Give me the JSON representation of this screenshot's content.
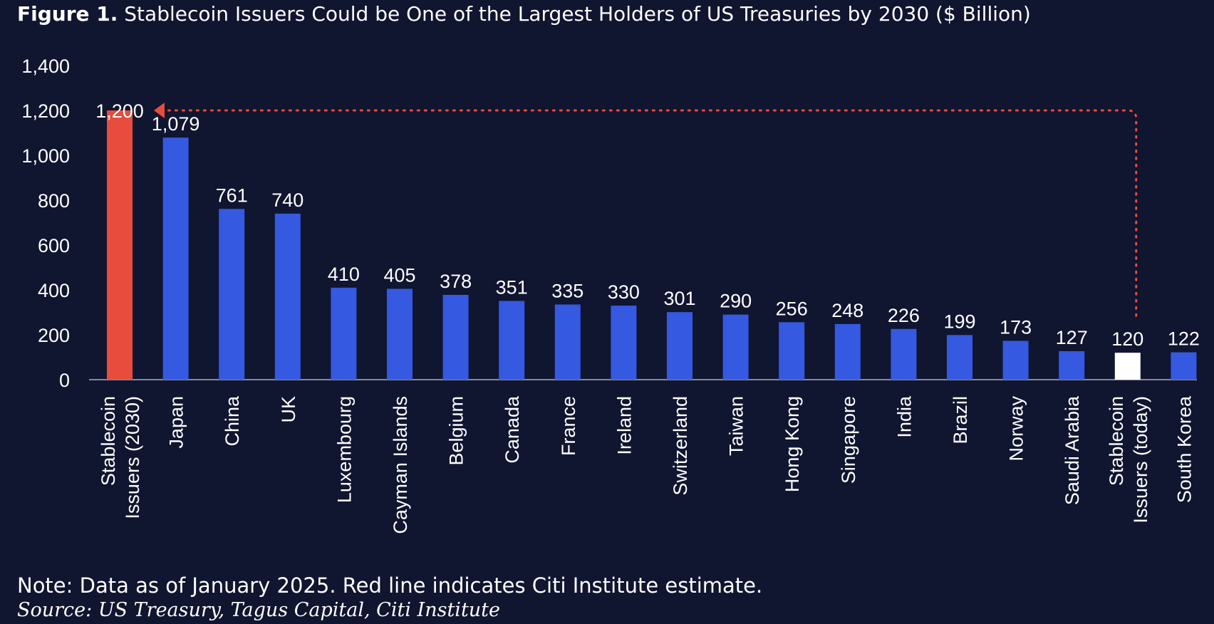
{
  "title_prefix": "Figure 1.",
  "title_text": "Stablecoin Issuers Could be One of the Largest Holders of US Treasuries by 2030 ($ Billion)",
  "note": "Note: Data as of January 2025. Red line indicates Citi Institute estimate.",
  "source": "Source: US Treasury, Tagus Capital, Citi Institute",
  "colors": {
    "background": "#101530",
    "bar_default": "#3559e0",
    "bar_highlight": "#e84c3d",
    "bar_today": "#ffffff",
    "text": "#ffffff",
    "arrow": "#e84c3d"
  },
  "chart_data": {
    "type": "bar",
    "title": "Stablecoin Issuers Could be One of the Largest Holders of US Treasuries by 2030 ($ Billion)",
    "xlabel": "",
    "ylabel": "",
    "ylim": [
      0,
      1400
    ],
    "yticks": [
      0,
      200,
      400,
      600,
      800,
      1000,
      1200,
      1400
    ],
    "ytick_labels": [
      "0",
      "200",
      "400",
      "600",
      "800",
      "1,000",
      "1,200",
      "1,400"
    ],
    "grid": false,
    "legend": "none",
    "categories": [
      [
        "Stablecoin",
        "Issuers (2030)"
      ],
      [
        "Japan"
      ],
      [
        "China"
      ],
      [
        "UK"
      ],
      [
        "Luxembourg"
      ],
      [
        "Cayman Islands"
      ],
      [
        "Belgium"
      ],
      [
        "Canada"
      ],
      [
        "France"
      ],
      [
        "Ireland"
      ],
      [
        "Switzerland"
      ],
      [
        "Taiwan"
      ],
      [
        "Hong Kong"
      ],
      [
        "Singapore"
      ],
      [
        "India"
      ],
      [
        "Brazil"
      ],
      [
        "Norway"
      ],
      [
        "Saudi Arabia"
      ],
      [
        "Stablecoin",
        "Issuers (today)"
      ],
      [
        "South Korea"
      ]
    ],
    "values": [
      1200,
      1079,
      761,
      740,
      410,
      405,
      378,
      351,
      335,
      330,
      301,
      290,
      256,
      248,
      226,
      199,
      173,
      127,
      120,
      122
    ],
    "value_labels": [
      "1,200",
      "1,079",
      "761",
      "740",
      "410",
      "405",
      "378",
      "351",
      "335",
      "330",
      "301",
      "290",
      "256",
      "248",
      "226",
      "199",
      "173",
      "127",
      "120",
      "122"
    ],
    "bar_styles": [
      "highlight",
      "default",
      "default",
      "default",
      "default",
      "default",
      "default",
      "default",
      "default",
      "default",
      "default",
      "default",
      "default",
      "default",
      "default",
      "default",
      "default",
      "default",
      "today",
      "default"
    ],
    "annotation": {
      "type": "dotted-arrow",
      "from_category_index": 18,
      "to_category_index": 0,
      "level": 1200
    }
  }
}
